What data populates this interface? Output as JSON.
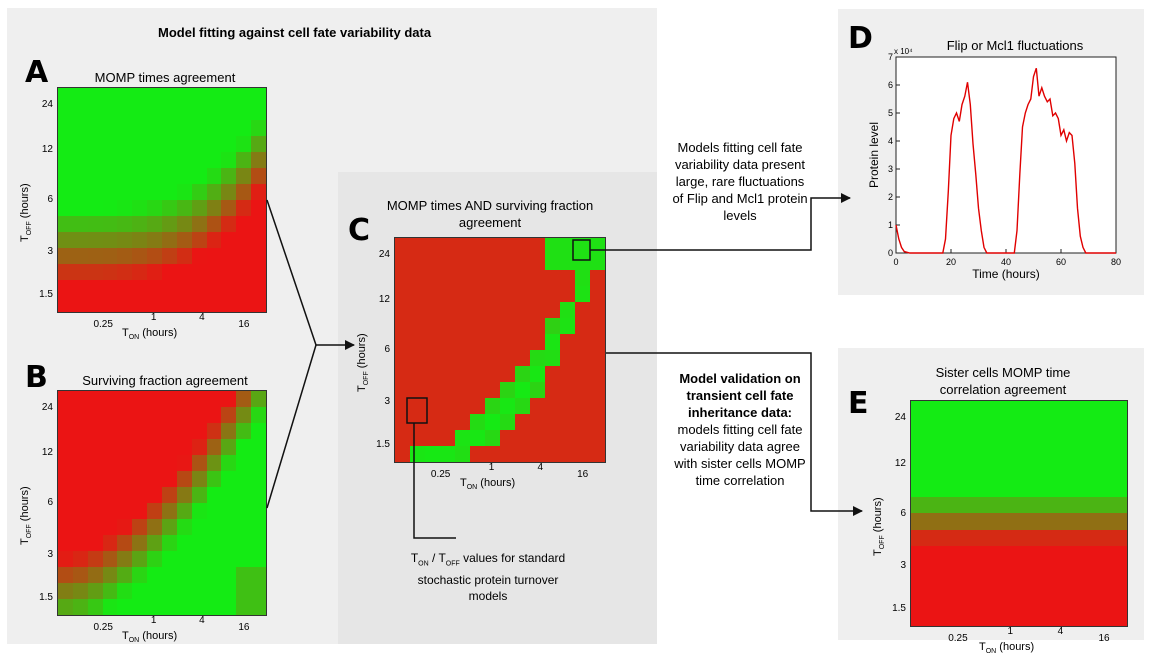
{
  "title": "Model fitting against cell fate variability data",
  "panels": {
    "A": {
      "letter": "A",
      "title": "MOMP times agreement"
    },
    "B": {
      "letter": "B",
      "title": "Surviving fraction agreement"
    },
    "C": {
      "letter": "C",
      "title_line1": "MOMP times AND surviving fraction",
      "title_line2": "agreement"
    },
    "D": {
      "letter": "D",
      "title": "Flip or Mcl1 fluctuations"
    },
    "E": {
      "letter": "E",
      "title_line1": "Sister cells MOMP time",
      "title_line2": "correlation agreement"
    }
  },
  "axes": {
    "y_ticks": [
      "24",
      "12",
      "6",
      "3",
      "1.5"
    ],
    "x_ticks": [
      "0.25",
      "1",
      "4",
      "16"
    ],
    "x_label_main": "T",
    "x_label_sub": "ON",
    "x_label_unit": " (hours)",
    "y_label_main": "T",
    "y_label_sub": "OFF",
    "y_label_unit": " (hours)"
  },
  "captions": {
    "fluct": [
      "Models fitting cell fate",
      "variability data present",
      "large, rare fluctuations",
      "of Flip and Mcl1 protein",
      "levels"
    ],
    "valid_bold": [
      "Model validation on",
      "transient cell fate",
      "inheritance data:"
    ],
    "valid": [
      "models fitting cell fate",
      "variability data agree",
      "with sister cells MOMP",
      "time correlation"
    ],
    "standard_prefix_main": "T",
    "standard_prefix_sub": "ON",
    "standard_slash": " / T",
    "standard_sub2": "OFF",
    "standard_line1_rest": " values for standard",
    "standard_line2": "stochastic protein turnover",
    "standard_line3": "models"
  },
  "chart_data": {
    "type": "line",
    "title": "Flip or Mcl1 fluctuations",
    "xlabel": "Time (hours)",
    "ylabel": "Protein level",
    "y_multiplier": "x 10⁴",
    "xlim": [
      0,
      80
    ],
    "ylim": [
      0,
      7
    ],
    "x_ticks": [
      0,
      20,
      40,
      60,
      80
    ],
    "y_ticks": [
      0,
      1,
      2,
      3,
      4,
      5,
      6,
      7
    ],
    "color": "#e00000",
    "series": [
      {
        "x": [
          0,
          1,
          2,
          3,
          5,
          8,
          12,
          17,
          18,
          19,
          20,
          21,
          22,
          23,
          24,
          25,
          26,
          27,
          28,
          29,
          30,
          31,
          32,
          33,
          34,
          35,
          40,
          43,
          44,
          45,
          46,
          47,
          48,
          49,
          50,
          51,
          52,
          53,
          54,
          55,
          56,
          57,
          58,
          59,
          60,
          61,
          62,
          63,
          64,
          65,
          66,
          67,
          68,
          69,
          70,
          72,
          80
        ],
        "y": [
          1.0,
          0.5,
          0.2,
          0.05,
          0.0,
          0.0,
          0.0,
          0.0,
          0.5,
          2.2,
          4.2,
          4.8,
          5.0,
          4.7,
          5.3,
          5.6,
          6.1,
          5.3,
          3.9,
          2.8,
          1.6,
          0.8,
          0.2,
          0.0,
          0.0,
          0.0,
          0.0,
          0.0,
          0.8,
          2.8,
          4.5,
          5.0,
          5.3,
          5.5,
          6.3,
          6.6,
          5.6,
          5.9,
          5.6,
          5.4,
          5.5,
          4.9,
          5.0,
          4.8,
          4.2,
          4.4,
          4.0,
          4.3,
          4.2,
          3.2,
          1.6,
          0.6,
          0.2,
          0.0,
          0.0,
          0.0,
          0.0
        ]
      }
    ]
  },
  "heatmaps": {
    "A": {
      "rows": 14,
      "cols": 14,
      "pattern": "momp"
    },
    "B": {
      "rows": 14,
      "cols": 14,
      "pattern": "surviving"
    },
    "C": {
      "rows": 14,
      "cols": 14,
      "pattern": "combined"
    },
    "E": {
      "rows": 14,
      "cols": 14,
      "pattern": "sister"
    }
  }
}
